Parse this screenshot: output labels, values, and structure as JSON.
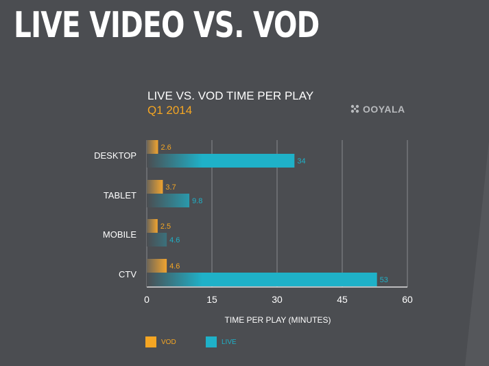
{
  "header": {
    "title": "LIVE VIDEO VS. VOD"
  },
  "brand": {
    "logo_text": "OOYALA",
    "logo_icon": "ooyala-logo-icon"
  },
  "colors": {
    "vod": "#f5a623",
    "live": "#1fb1c8",
    "background": "#4b4d51"
  },
  "chart_data": {
    "type": "bar",
    "orientation": "horizontal",
    "title": "LIVE VS. VOD TIME PER PLAY",
    "subtitle": "Q1 2014",
    "categories": [
      "DESKTOP",
      "TABLET",
      "MOBILE",
      "CTV"
    ],
    "series": [
      {
        "name": "VOD",
        "values": [
          2.6,
          3.7,
          2.5,
          4.6
        ],
        "labels": [
          "2.6",
          "3.7",
          "2.5",
          "4.6"
        ]
      },
      {
        "name": "LIVE",
        "values": [
          34,
          9.8,
          4.6,
          53
        ],
        "labels": [
          "34",
          "9.8",
          "4.6",
          "53"
        ]
      }
    ],
    "xlabel": "TIME PER PLAY (MINUTES)",
    "ylabel": "",
    "xlim": [
      0,
      60
    ],
    "xticks": [
      "0",
      "15",
      "30",
      "45",
      "60"
    ],
    "grid": true,
    "legend": "bottom-left"
  }
}
